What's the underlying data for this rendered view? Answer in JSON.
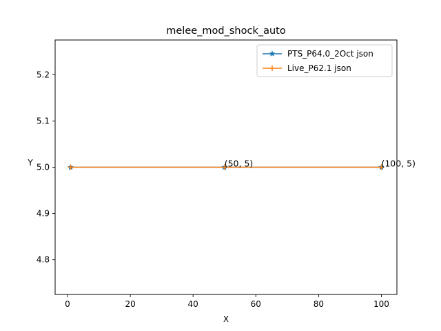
{
  "chart_data": {
    "type": "line",
    "title": "melee_mod_shock_auto",
    "xlabel": "X",
    "ylabel": "Y",
    "xlim": [
      -3.95,
      104.95
    ],
    "ylim": [
      4.725,
      5.275
    ],
    "xticks": [
      0,
      20,
      40,
      60,
      80,
      100
    ],
    "yticks": [
      4.8,
      4.9,
      5.0,
      5.1,
      5.2
    ],
    "ytick_labels": [
      "4.8",
      "4.9",
      "5.0",
      "5.1",
      "5.2"
    ],
    "legend_position": "top-right",
    "series": [
      {
        "name": "PTS_P64.0_2Oct json",
        "color": "#1f77b4",
        "marker": "star",
        "x": [
          1,
          50,
          100
        ],
        "y": [
          5,
          5,
          5
        ]
      },
      {
        "name": "Live_P62.1 json",
        "color": "#ff7f0e",
        "marker": "plus",
        "x": [
          1,
          50,
          100
        ],
        "y": [
          5,
          5,
          5
        ]
      }
    ],
    "annotations": [
      {
        "text": "(50, 5)",
        "x": 50,
        "y": 5
      },
      {
        "text": "(100, 5)",
        "x": 100,
        "y": 5
      }
    ]
  }
}
